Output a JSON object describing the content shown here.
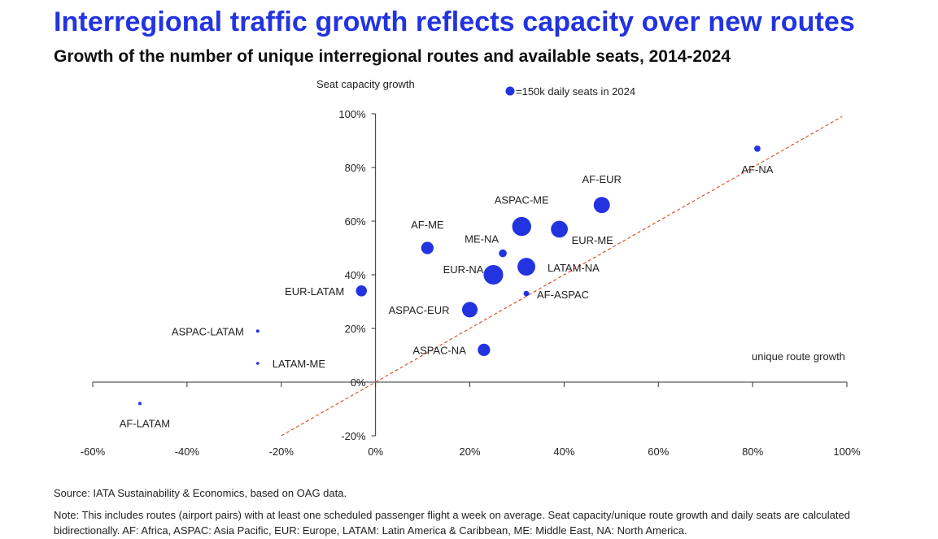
{
  "title": "Interregional traffic growth reflects capacity over new routes",
  "subtitle": "Growth of the number of unique interregional routes and available seats, 2014-2024",
  "source": "Source: IATA Sustainability & Economics, based on OAG data.",
  "note": "Note: This includes routes (airport pairs) with at least one scheduled passenger flight a week on average. Seat capacity/unique route growth and daily seats are calculated bidirectionally. AF: Africa, ASPAC: Asia Pacific, EUR: Europe, LATAM: Latin America & Caribbean, ME: Middle East, NA: North America.",
  "colors": {
    "title": "#2233e0",
    "bubble": "#2233e0",
    "diagonal": "#e0502a",
    "axis": "#333333"
  },
  "chart_data": {
    "type": "scatter",
    "xlabel": "unique route growth",
    "ylabel": "Seat capacity growth",
    "xlim": [
      -60,
      100
    ],
    "ylim": [
      -20,
      100
    ],
    "x_ticks": [
      -60,
      -40,
      -20,
      0,
      20,
      40,
      60,
      80,
      100
    ],
    "y_ticks": [
      -20,
      0,
      20,
      40,
      60,
      80,
      100
    ],
    "x_tick_labels": [
      "-60%",
      "-40%",
      "-20%",
      "0%",
      "20%",
      "40%",
      "60%",
      "80%",
      "100%"
    ],
    "y_tick_labels": [
      "-20%",
      "0%",
      "20%",
      "40%",
      "60%",
      "80%",
      "100%"
    ],
    "reference_line": {
      "style": "dashed",
      "slope": 1,
      "intercept": 0,
      "x_range": [
        -20,
        99
      ]
    },
    "size_legend": {
      "label": "=150k daily seats in 2024",
      "value": 150
    },
    "points": [
      {
        "label": "AF-NA",
        "x": 81,
        "y": 87,
        "size": 18
      },
      {
        "label": "AF-EUR",
        "x": 48,
        "y": 66,
        "size": 120
      },
      {
        "label": "ASPAC-ME",
        "x": 31,
        "y": 58,
        "size": 165
      },
      {
        "label": "EUR-ME",
        "x": 39,
        "y": 57,
        "size": 130
      },
      {
        "label": "AF-ME",
        "x": 11,
        "y": 50,
        "size": 70
      },
      {
        "label": "ME-NA",
        "x": 27,
        "y": 48,
        "size": 28
      },
      {
        "label": "LATAM-NA",
        "x": 32,
        "y": 43,
        "size": 145
      },
      {
        "label": "EUR-NA",
        "x": 25,
        "y": 40,
        "size": 175
      },
      {
        "label": "EUR-LATAM",
        "x": -3,
        "y": 34,
        "size": 55
      },
      {
        "label": "AF-ASPAC",
        "x": 32,
        "y": 33,
        "size": 14
      },
      {
        "label": "ASPAC-EUR",
        "x": 20,
        "y": 27,
        "size": 110
      },
      {
        "label": "ASPAC-LATAM",
        "x": -25,
        "y": 19,
        "size": 5
      },
      {
        "label": "ASPAC-NA",
        "x": 23,
        "y": 12,
        "size": 70
      },
      {
        "label": "LATAM-ME",
        "x": -25,
        "y": 7,
        "size": 4
      },
      {
        "label": "AF-LATAM",
        "x": -50,
        "y": -8,
        "size": 5
      }
    ]
  }
}
